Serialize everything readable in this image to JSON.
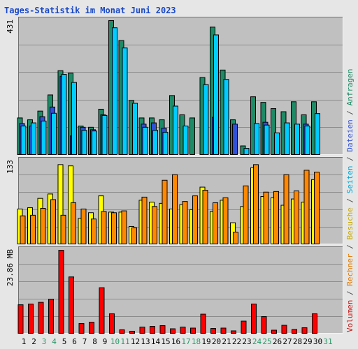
{
  "chart_data": {
    "type": "bar",
    "title": "Tages-Statistik im Monat Juni 2023",
    "days": [
      "1",
      "2",
      "3",
      "4",
      "5",
      "6",
      "7",
      "8",
      "9",
      "10",
      "11",
      "12",
      "13",
      "14",
      "15",
      "16",
      "17",
      "18",
      "19",
      "20",
      "21",
      "22",
      "23",
      "24",
      "25",
      "26",
      "27",
      "28",
      "29",
      "30",
      "31"
    ],
    "weekend_days": [
      "3",
      "4",
      "10",
      "11",
      "17",
      "18",
      "24",
      "25",
      "31"
    ],
    "panels": {
      "requests": {
        "y_max_label": "431",
        "y_max": 431,
        "series": [
          {
            "name": "Anfragen",
            "color": "#1e8a66",
            "values": [
              118,
              112,
              140,
              192,
              270,
              262,
              92,
              88,
              146,
              431,
              367,
              174,
              118,
              118,
              112,
              190,
              128,
              118,
              248,
              410,
              272,
              112,
              28,
              186,
              168,
              148,
              138,
              170,
              128,
              170,
              null
            ]
          },
          {
            "name": "Dateien",
            "color": "#2f50d8",
            "values": [
              100,
              92,
              122,
              153,
              252,
              60,
              88,
              80,
              128,
              0,
              0,
              0,
              98,
              102,
              85,
              0,
              0,
              0,
              0,
              120,
              0,
              98,
              0,
              0,
              104,
              0,
              0,
              0,
              98,
              0,
              null
            ]
          },
          {
            "name": "Seiten",
            "color": "#00ccff",
            "values": [
              92,
              102,
              108,
              133,
              258,
              232,
              78,
              76,
              126,
              408,
              343,
              165,
              88,
              78,
              72,
              156,
              92,
              0,
              225,
              385,
              242,
              0,
              20,
              100,
              95,
              70,
              102,
              98,
              92,
              132,
              null
            ]
          }
        ]
      },
      "visits": {
        "y_max_label": "133",
        "y_max": 133,
        "series": [
          {
            "name": "Besuche",
            "color": "#ffff00",
            "values": [
              56,
              58,
              73,
              80,
              127,
              125,
              41,
              50,
              77,
              51,
              51,
              28,
              70,
              67,
              65,
              56,
              63,
              55,
              91,
              52,
              70,
              34,
              60,
              122,
              76,
              74,
              62,
              72,
              67,
              103,
              null
            ]
          },
          {
            "name": "Rechner",
            "color": "#ff8800",
            "values": [
              45,
              46,
              57,
              71,
              46,
              66,
              56,
              40,
              52,
              50,
              53,
              26,
              75,
              60,
              102,
              111,
              68,
              77,
              86,
              66,
              74,
              19,
              93,
              127,
              83,
              84,
              111,
              85,
              118,
              115,
              null
            ]
          }
        ]
      },
      "volume": {
        "y_max_label": "23.86 MB",
        "y_max": 23.86,
        "series": [
          {
            "name": "Volumen",
            "color": "#ff0000",
            "values": [
              8.2,
              8.4,
              8.9,
              9.8,
              23.86,
              16.2,
              2.8,
              3.2,
              13.1,
              5.6,
              1.0,
              0.6,
              1.8,
              2.0,
              2.2,
              1.3,
              1.8,
              1.5,
              5.5,
              1.4,
              1.5,
              0.7,
              3.5,
              8.4,
              4.8,
              0.9,
              2.3,
              1.1,
              1.6,
              5.6,
              null
            ]
          }
        ]
      }
    },
    "legend_words": [
      {
        "text": "Volumen",
        "color": "#c41414"
      },
      {
        "text": "Rechner",
        "color": "#e07800"
      },
      {
        "text": "Besuche",
        "color": "#c8a800"
      },
      {
        "text": "Seiten",
        "color": "#00a6d6"
      },
      {
        "text": "Dateien",
        "color": "#2f50d8"
      },
      {
        "text": "Anfragen",
        "color": "#1e8a66"
      }
    ],
    "legend_separator": " / ",
    "colors": {
      "panel_bg": "#c0c0c0",
      "grid": "#8c8c8c",
      "title": "#1848c8",
      "weekday_label": "#000000",
      "weekend_label": "#2a9a6a"
    }
  }
}
